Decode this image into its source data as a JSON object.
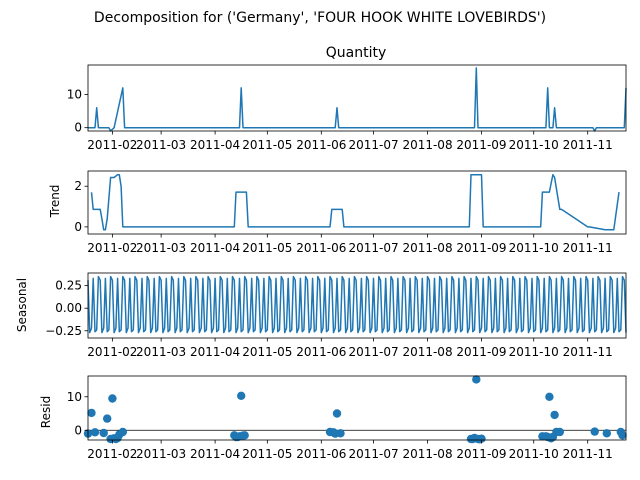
{
  "suptitle": "Decomposition for ('Germany', 'FOUR HOOK  WHITE LOVEBIRDS')",
  "colors": {
    "line": "#1f77b4",
    "axis": "#000000",
    "background": "#ffffff"
  },
  "x_ticks": [
    "2011-02",
    "2011-03",
    "2011-04",
    "2011-05",
    "2011-06",
    "2011-07",
    "2011-08",
    "2011-09",
    "2011-10",
    "2011-11"
  ],
  "chart_data": [
    {
      "type": "line",
      "title": "Quantity",
      "ylabel": "",
      "xlim": [
        "2011-01-18",
        "2011-11-23"
      ],
      "ylim": [
        -1,
        18.9
      ],
      "yticks": [
        0,
        10
      ],
      "grid": false,
      "x": [
        "2011-01-18",
        "2011-01-22",
        "2011-01-23",
        "2011-01-24",
        "2011-01-26",
        "2011-01-30",
        "2011-01-31",
        "2011-02-02",
        "2011-02-07",
        "2011-02-08",
        "2011-02-09",
        "2011-04-15",
        "2011-04-16",
        "2011-04-17",
        "2011-06-09",
        "2011-06-10",
        "2011-06-11",
        "2011-08-28",
        "2011-08-29",
        "2011-08-30",
        "2011-10-08",
        "2011-10-09",
        "2011-10-10",
        "2011-10-12",
        "2011-10-13",
        "2011-10-14",
        "2011-11-04",
        "2011-11-05",
        "2011-11-06",
        "2011-11-22",
        "2011-11-23"
      ],
      "y": [
        0,
        0,
        6,
        0,
        0,
        0,
        -1,
        0,
        12,
        0,
        0,
        0,
        12,
        0,
        0,
        6,
        0,
        0,
        18,
        0,
        0,
        12,
        0,
        0,
        6,
        0,
        0,
        -1,
        0,
        0,
        12
      ]
    },
    {
      "type": "line",
      "title": "",
      "ylabel": "Trend",
      "xlim": [
        "2011-01-18",
        "2011-11-23"
      ],
      "ylim": [
        -0.35,
        2.75
      ],
      "yticks": [
        0,
        2
      ],
      "grid": false,
      "x": [
        "2011-01-20",
        "2011-01-21",
        "2011-01-23",
        "2011-01-24",
        "2011-01-25",
        "2011-01-26",
        "2011-01-27",
        "2011-01-28",
        "2011-01-29",
        "2011-01-31",
        "2011-02-02",
        "2011-02-04",
        "2011-02-05",
        "2011-02-06",
        "2011-02-07",
        "2011-02-08",
        "2011-02-11",
        "2011-04-12",
        "2011-04-13",
        "2011-04-19",
        "2011-04-20",
        "2011-06-06",
        "2011-06-07",
        "2011-06-13",
        "2011-06-14",
        "2011-08-25",
        "2011-08-26",
        "2011-09-01",
        "2011-09-02",
        "2011-10-05",
        "2011-10-06",
        "2011-10-10",
        "2011-10-11",
        "2011-10-12",
        "2011-10-13",
        "2011-10-16",
        "2011-10-17",
        "2011-11-01",
        "2011-11-02",
        "2011-11-11",
        "2011-11-16",
        "2011-11-19"
      ],
      "y": [
        1.7,
        0.86,
        0.86,
        0.86,
        0.86,
        0.4,
        -0.14,
        -0.14,
        0.4,
        2.43,
        2.43,
        2.57,
        2.57,
        2.0,
        0.0,
        0.0,
        0.0,
        0.0,
        1.71,
        1.71,
        0.0,
        0.0,
        0.86,
        0.86,
        0.0,
        0.0,
        2.57,
        2.57,
        0.0,
        0.0,
        1.71,
        1.71,
        2.14,
        2.57,
        2.43,
        0.86,
        0.86,
        0.0,
        0.0,
        -0.14,
        -0.14,
        1.71
      ]
    },
    {
      "type": "line",
      "title": "",
      "ylabel": "Seasonal",
      "xlim": [
        "2011-01-18",
        "2011-11-23"
      ],
      "ylim": [
        -0.33,
        0.39
      ],
      "yticks": [
        -0.25,
        0.0,
        0.25
      ],
      "ytick_labels": [
        "−0.25",
        "0.00",
        "0.25"
      ],
      "grid": false,
      "period_days": 7,
      "weekly_pattern": [
        0.31,
        -0.27,
        -0.22,
        0.33,
        -0.26,
        -0.24,
        0.35
      ],
      "start": "2011-01-18",
      "end": "2011-11-23"
    },
    {
      "type": "scatter",
      "title": "",
      "ylabel": "Resid",
      "xlim": [
        "2011-01-18",
        "2011-11-23"
      ],
      "ylim": [
        -2.9,
        16.2
      ],
      "yticks": [
        0,
        10
      ],
      "grid": false,
      "baseline": 0,
      "x": [
        "2011-01-18",
        "2011-01-20",
        "2011-01-22",
        "2011-01-27",
        "2011-01-29",
        "2011-01-31",
        "2011-02-01",
        "2011-02-02",
        "2011-02-03",
        "2011-02-04",
        "2011-02-05",
        "2011-02-07",
        "2011-04-12",
        "2011-04-13",
        "2011-04-14",
        "2011-04-15",
        "2011-04-16",
        "2011-04-17",
        "2011-04-18",
        "2011-06-06",
        "2011-06-08",
        "2011-06-09",
        "2011-06-10",
        "2011-06-12",
        "2011-08-26",
        "2011-08-27",
        "2011-08-28",
        "2011-08-29",
        "2011-08-30",
        "2011-08-31",
        "2011-09-01",
        "2011-10-06",
        "2011-10-08",
        "2011-10-09",
        "2011-10-10",
        "2011-10-11",
        "2011-10-12",
        "2011-10-13",
        "2011-10-14",
        "2011-10-16",
        "2011-11-05",
        "2011-11-12",
        "2011-11-20",
        "2011-11-21"
      ],
      "y": [
        -1.0,
        5.2,
        -0.6,
        -0.8,
        3.5,
        -2.6,
        9.5,
        -2.4,
        -2.6,
        -2.3,
        -1.3,
        -0.5,
        -1.5,
        -2.0,
        -2.0,
        -1.8,
        10.3,
        -1.6,
        -1.5,
        -0.5,
        -0.6,
        -1.0,
        5.0,
        -0.9,
        -2.6,
        -2.6,
        -2.3,
        15.2,
        -2.6,
        -2.7,
        -2.5,
        -1.8,
        -1.8,
        -2.0,
        10.0,
        -2.4,
        -2.0,
        4.6,
        -0.5,
        -0.5,
        -0.4,
        -0.9,
        -0.5,
        -1.5
      ]
    }
  ]
}
